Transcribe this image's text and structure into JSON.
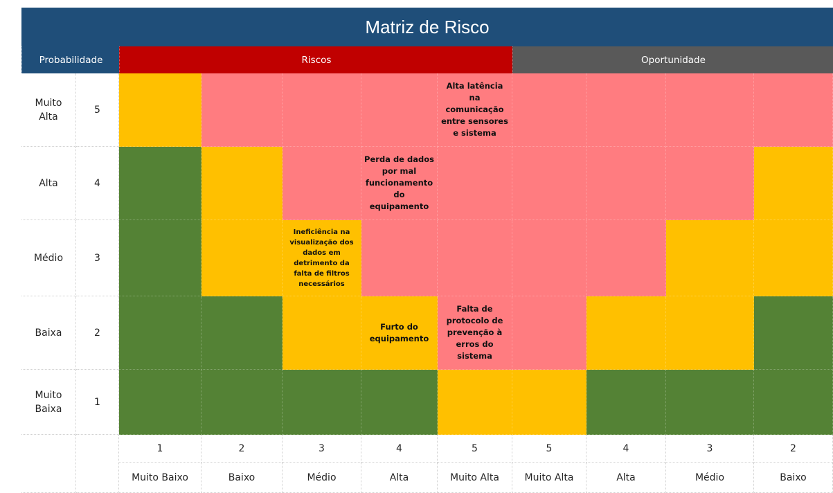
{
  "title": "Matriz de Risco",
  "headers": {
    "probabilidade": "Probabilidade",
    "riscos": "Riscos",
    "oportunidade": "Oportunidade"
  },
  "rows": [
    {
      "label": "Muito Alta",
      "num": "5"
    },
    {
      "label": "Alta",
      "num": "4"
    },
    {
      "label": "Médio",
      "num": "3"
    },
    {
      "label": "Baixa",
      "num": "2"
    },
    {
      "label": "Muito Baixa",
      "num": "1"
    }
  ],
  "columns": [
    {
      "num": "1",
      "label": "Muito Baixo"
    },
    {
      "num": "2",
      "label": "Baixo"
    },
    {
      "num": "3",
      "label": "Médio"
    },
    {
      "num": "4",
      "label": "Alta"
    },
    {
      "num": "5",
      "label": "Muito Alta"
    },
    {
      "num": "5",
      "label": "Muito Alta"
    },
    {
      "num": "4",
      "label": "Alta"
    },
    {
      "num": "3",
      "label": "Médio"
    },
    {
      "num": "2",
      "label": "Baixo"
    }
  ],
  "grid": [
    [
      "y",
      "r",
      "r",
      "r",
      "r",
      "r",
      "r",
      "r",
      "r"
    ],
    [
      "g",
      "y",
      "r",
      "r",
      "r",
      "r",
      "r",
      "r",
      "y"
    ],
    [
      "g",
      "y",
      "y",
      "r",
      "r",
      "r",
      "r",
      "y",
      "y"
    ],
    [
      "g",
      "g",
      "y",
      "y",
      "r",
      "r",
      "y",
      "y",
      "g"
    ],
    [
      "g",
      "g",
      "g",
      "g",
      "y",
      "y",
      "g",
      "g",
      "g"
    ]
  ],
  "colors": {
    "green": "#548235",
    "yellow": "#ffc000",
    "red": "#ff7c80",
    "header_blue": "#1f4e79",
    "header_red": "#c00000",
    "header_gray": "#595959"
  },
  "risks": [
    {
      "row": 0,
      "col": 4,
      "text": "Alta latência na comunicação entre sensores e sistema"
    },
    {
      "row": 1,
      "col": 3,
      "text": "Perda de dados por mal funcionamento do equipamento"
    },
    {
      "row": 2,
      "col": 2,
      "text": "Ineficiência na visualização dos dados em detrimento da falta de filtros necessários"
    },
    {
      "row": 3,
      "col": 3,
      "text": "Furto do equipamento"
    },
    {
      "row": 3,
      "col": 4,
      "text": "Falta de protocolo de prevenção à erros do sistema"
    }
  ]
}
